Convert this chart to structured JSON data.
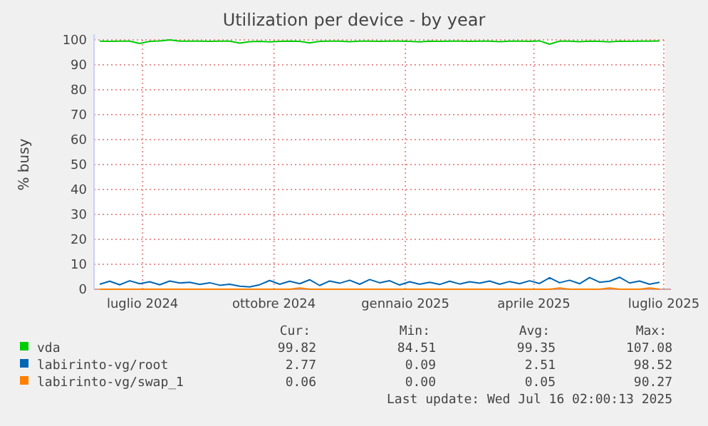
{
  "chart_data": {
    "type": "line",
    "title": "Utilization per device - by year",
    "ylabel": "% busy",
    "x": [
      "2024-06-01",
      "2024-06-08",
      "2024-06-15",
      "2024-06-22",
      "2024-06-29",
      "2024-07-06",
      "2024-07-13",
      "2024-07-20",
      "2024-07-27",
      "2024-08-03",
      "2024-08-10",
      "2024-08-17",
      "2024-08-24",
      "2024-08-31",
      "2024-09-07",
      "2024-09-14",
      "2024-09-21",
      "2024-09-28",
      "2024-10-05",
      "2024-10-12",
      "2024-10-19",
      "2024-10-26",
      "2024-11-02",
      "2024-11-09",
      "2024-11-16",
      "2024-11-23",
      "2024-11-30",
      "2024-12-07",
      "2024-12-14",
      "2024-12-21",
      "2024-12-28",
      "2025-01-04",
      "2025-01-11",
      "2025-01-18",
      "2025-01-25",
      "2025-02-01",
      "2025-02-08",
      "2025-02-15",
      "2025-02-22",
      "2025-03-01",
      "2025-03-08",
      "2025-03-15",
      "2025-03-22",
      "2025-03-29",
      "2025-04-05",
      "2025-04-12",
      "2025-04-19",
      "2025-04-26",
      "2025-05-03",
      "2025-05-10",
      "2025-05-17",
      "2025-05-24",
      "2025-05-31",
      "2025-06-07",
      "2025-06-14",
      "2025-06-21",
      "2025-06-28"
    ],
    "series": [
      {
        "name": "vda",
        "color": "#00cc00",
        "values": [
          99.5,
          99.4,
          99.5,
          99.5,
          98.6,
          99.4,
          99.6,
          100,
          99.5,
          99.5,
          99.5,
          99.4,
          99.5,
          99.5,
          98.7,
          99.3,
          99.4,
          99.2,
          99.4,
          99.5,
          99.4,
          98.8,
          99.4,
          99.5,
          99.5,
          99.3,
          99.5,
          99.5,
          99.4,
          99.5,
          99.5,
          99.4,
          99.2,
          99.5,
          99.4,
          99.5,
          99.5,
          99.4,
          99.5,
          99.5,
          99.3,
          99.5,
          99.5,
          99.4,
          99.6,
          98.3,
          99.5,
          99.5,
          99.3,
          99.5,
          99.4,
          99.2,
          99.5,
          99.4,
          99.5,
          99.5,
          99.6
        ]
      },
      {
        "name": "labirinto-vg/root",
        "color": "#0066b3",
        "values": [
          2.0,
          3.2,
          1.8,
          3.4,
          2.2,
          3.0,
          1.8,
          3.3,
          2.5,
          2.8,
          1.9,
          2.6,
          1.6,
          2.0,
          1.2,
          0.9,
          1.8,
          3.5,
          2.0,
          3.2,
          2.2,
          3.8,
          1.5,
          3.3,
          2.4,
          3.6,
          2.0,
          3.9,
          2.6,
          3.4,
          1.7,
          3.0,
          2.0,
          2.8,
          1.9,
          3.2,
          2.1,
          3.0,
          2.4,
          3.3,
          2.0,
          3.1,
          2.2,
          3.4,
          2.3,
          4.6,
          2.6,
          3.6,
          2.2,
          4.7,
          2.8,
          3.2,
          4.8,
          2.5,
          3.3,
          2.0,
          2.8
        ]
      },
      {
        "name": "labirinto-vg/swap_1",
        "color": "#ff8000",
        "values": [
          0,
          0,
          0,
          0,
          0,
          0,
          0,
          0,
          0,
          0,
          0,
          0,
          0,
          0,
          0,
          0,
          0,
          0,
          0,
          0,
          0.5,
          0,
          0,
          0,
          0,
          0,
          0,
          0,
          0,
          0,
          0,
          0,
          0,
          0,
          0,
          0,
          0,
          0,
          0,
          0,
          0,
          0,
          0,
          0,
          0,
          0,
          0.5,
          0,
          0,
          0,
          0,
          0.5,
          0,
          0,
          0,
          0.5,
          0
        ]
      }
    ],
    "xlim": [
      "2024-05-28",
      "2025-07-02"
    ],
    "xticks": [
      {
        "value": "2024-07-01",
        "label": "luglio 2024"
      },
      {
        "value": "2024-10-01",
        "label": "ottobre 2024"
      },
      {
        "value": "2025-01-01",
        "label": "gennaio 2025"
      },
      {
        "value": "2025-04-01",
        "label": "aprile 2025"
      },
      {
        "value": "2025-07-01",
        "label": "luglio 2025"
      }
    ],
    "ylim": [
      0,
      100
    ],
    "yticks": [
      0,
      10,
      20,
      30,
      40,
      50,
      60,
      70,
      80,
      90,
      100
    ],
    "grid": true,
    "legend": "bottom",
    "annotations": [
      "Cur:",
      "Min:",
      "Avg:",
      "Max:",
      "99.82",
      "84.51",
      "99.35",
      "107.08",
      "2.77",
      "0.09",
      "2.51",
      "98.52",
      "0.06",
      "0.00",
      "0.05",
      "90.27",
      "Last update: Wed Jul 16 02:00:13 2025"
    ]
  }
}
